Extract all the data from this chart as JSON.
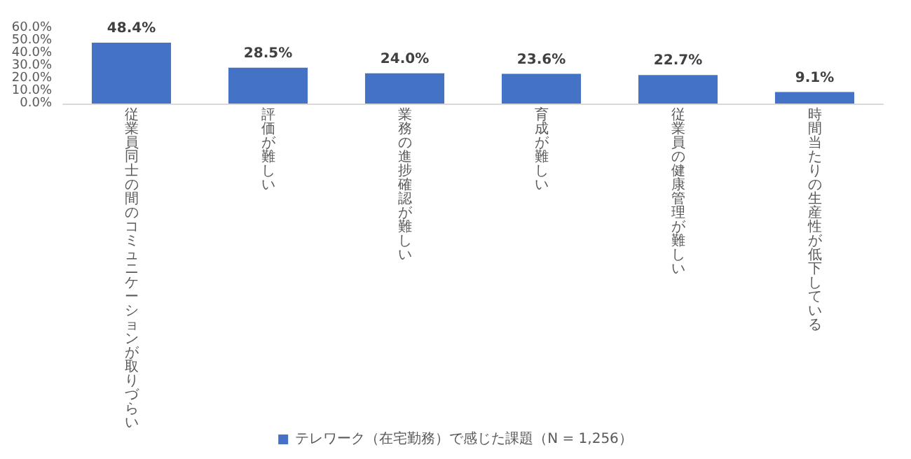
{
  "chart_data": {
    "type": "bar",
    "categories": [
      "従業員同士の間のコミュニケーションが取りづらい",
      "評価が難しい",
      "業務の進捗確認が難しい",
      "育成が難しい",
      "従業員の健康管理が難しい",
      "時間当たりの生産性が低下している"
    ],
    "series": [
      {
        "name": "テレワーク（在宅勤務）で感じた課題（N = 1,256）",
        "color": "#4472c4",
        "values": [
          48.4,
          28.5,
          24.0,
          23.6,
          22.7,
          9.1
        ],
        "value_labels": [
          "48.4%",
          "28.5%",
          "24.0%",
          "23.6%",
          "22.7%",
          "9.1%"
        ]
      }
    ],
    "ylim": [
      0,
      60
    ],
    "yticks": [
      {
        "value": 0,
        "label": "0.0%"
      },
      {
        "value": 10,
        "label": "10.0%"
      },
      {
        "value": 20,
        "label": "20.0%"
      },
      {
        "value": 30,
        "label": "30.0%"
      },
      {
        "value": 40,
        "label": "40.0%"
      },
      {
        "value": 50,
        "label": "50.0%"
      },
      {
        "value": 60,
        "label": "60.0%"
      }
    ],
    "grid": false,
    "legend": "bottom"
  }
}
